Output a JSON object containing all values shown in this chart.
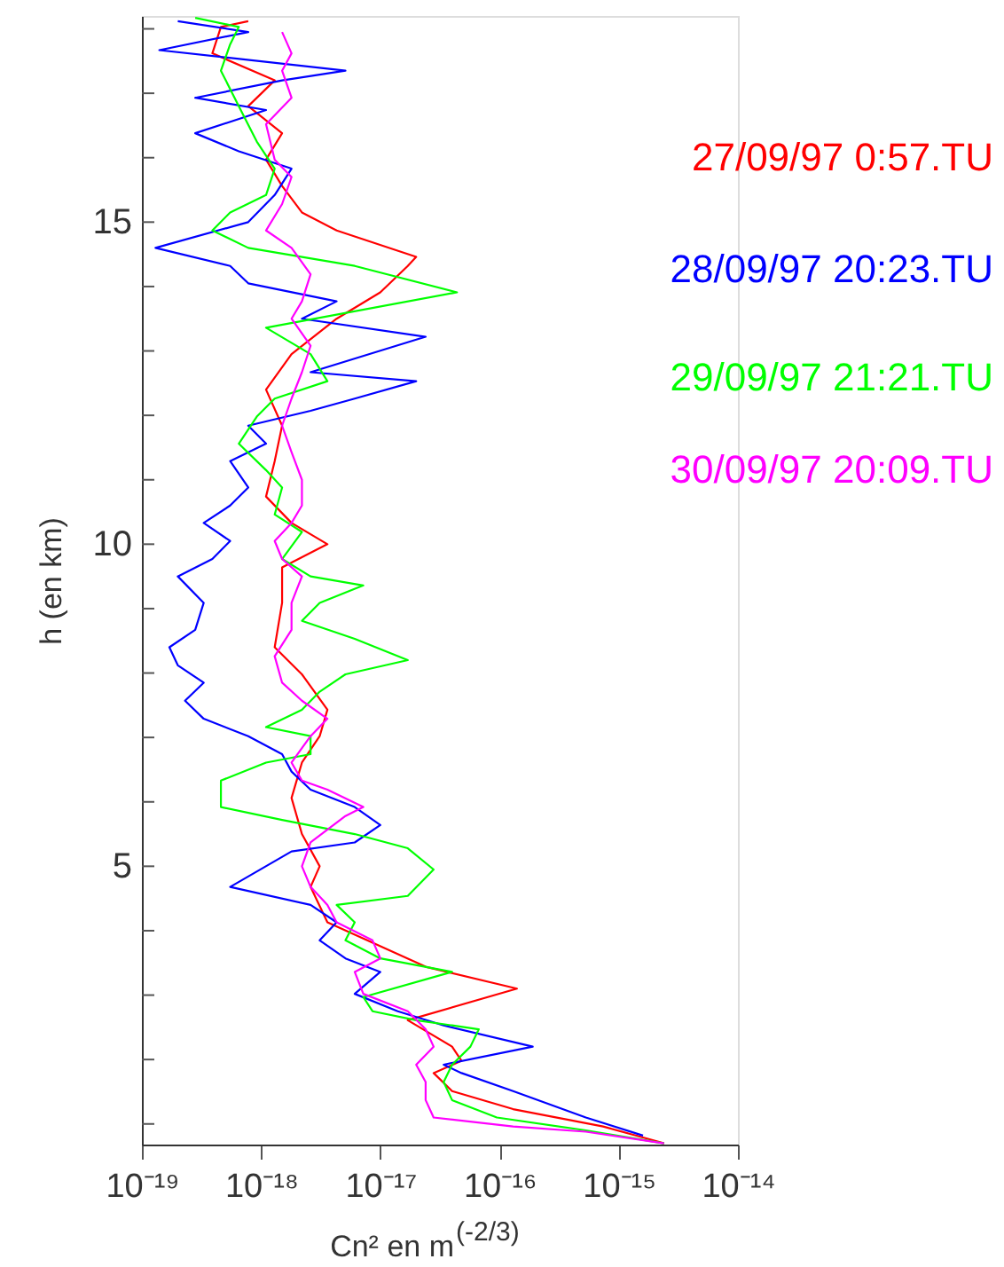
{
  "chart_data": {
    "type": "line",
    "xlabel": "Cn² en m$^{(-2/3)}$",
    "ylabel": "h (en km)",
    "log": "x",
    "xlim": [
      1e-19,
      1e-14
    ],
    "ylim": [
      0.68,
      18.2
    ],
    "xticks": [
      {
        "value": 1e-19,
        "label": "10⁻¹⁹"
      },
      {
        "value": 1e-18,
        "label": "10⁻¹⁸"
      },
      {
        "value": 1e-17,
        "label": "10⁻¹⁷"
      },
      {
        "value": 1e-16,
        "label": "10⁻¹⁶"
      },
      {
        "value": 1e-15,
        "label": "10⁻¹⁵"
      },
      {
        "value": 1e-14,
        "label": "10⁻¹⁴"
      }
    ],
    "yticks": [
      {
        "value": 1,
        "label": null
      },
      {
        "value": 2,
        "label": null
      },
      {
        "value": 3,
        "label": null
      },
      {
        "value": 4,
        "label": null
      },
      5,
      {
        "value": 6,
        "label": null
      },
      {
        "value": 7,
        "label": null
      },
      {
        "value": 8,
        "label": null
      },
      {
        "value": 9,
        "label": null
      },
      10,
      {
        "value": 11,
        "label": null
      },
      {
        "value": 12,
        "label": null
      },
      {
        "value": 13,
        "label": null
      },
      {
        "value": 14,
        "label": null
      },
      15,
      {
        "value": 16,
        "label": null
      },
      {
        "value": 17,
        "label": null
      },
      {
        "value": 18,
        "label": null
      }
    ],
    "grid": false,
    "legend": "top right",
    "series": [
      {
        "name": "27/09/97 0:57.TU",
        "color": "#ff0000",
        "x": [
          2.4e-15,
          7.4e-16,
          1.3e-16,
          4e-17,
          2.8e-17,
          4.8e-17,
          4e-17,
          1.7e-17,
          1.4e-16,
          2.4e-17,
          3.6e-18,
          2.6e-18,
          3.1e-18,
          2.2e-18,
          1.8e-18,
          2.2e-18,
          3.1e-18,
          3.6e-18,
          2.2e-18,
          1.3e-18,
          1.5e-18,
          1.5e-18,
          3.6e-18,
          1.8e-18,
          1.1e-18,
          1.3e-18,
          1.5e-18,
          1.1e-18,
          1.8e-18,
          4.3e-18,
          1e-17,
          1.7e-17,
          2e-17,
          4.3e-18,
          2.2e-18,
          1.5e-18,
          1.1e-18,
          1.5e-18,
          7.8e-19,
          1.3e-18,
          3.9e-19,
          4.6e-19,
          7.8e-19
        ],
        "values": [
          0.7,
          0.96,
          1.23,
          1.51,
          1.79,
          1.98,
          2.2,
          2.61,
          3.1,
          3.44,
          4.13,
          4.68,
          5.0,
          5.5,
          6.06,
          6.61,
          7.02,
          7.43,
          7.98,
          8.4,
          9.09,
          9.64,
          10.0,
          10.33,
          10.74,
          11.29,
          11.84,
          12.4,
          12.95,
          13.5,
          13.91,
          14.32,
          14.46,
          14.87,
          15.15,
          15.56,
          15.97,
          16.38,
          16.8,
          17.2,
          17.62,
          18.03,
          18.12
        ]
      },
      {
        "name": "28/09/97 20:23.TU",
        "color": "#0000ff",
        "x": [
          1.6e-15,
          5.3e-16,
          1.3e-16,
          4.8e-17,
          3.4e-17,
          1.9e-16,
          3.4e-17,
          1.4e-17,
          6.1e-18,
          1e-17,
          5.1e-18,
          3.1e-18,
          4.3e-18,
          2.6e-18,
          5.5e-19,
          1.8e-18,
          6.1e-18,
          1e-17,
          6.1e-18,
          2.6e-18,
          1.8e-18,
          1.5e-18,
          7.8e-19,
          3.3e-19,
          2.3e-19,
          3.3e-19,
          2e-19,
          1.7e-19,
          2.8e-19,
          3.3e-19,
          2e-19,
          3.9e-19,
          5.5e-19,
          3.3e-19,
          5.5e-19,
          7.8e-19,
          5.5e-19,
          1.1e-18,
          7.8e-19,
          2.6e-18,
          6.1e-18,
          2e-17,
          2.6e-18,
          2.4e-17,
          2.2e-18,
          4.3e-18,
          7.8e-19,
          5.5e-19,
          1.3e-19,
          7.8e-19,
          1.3e-18,
          1.8e-18,
          6.5e-19,
          2.8e-19,
          1.1e-18,
          2.8e-19,
          1.5e-18,
          5.1e-18,
          1.4e-19,
          7.8e-19,
          2e-19
        ],
        "values": [
          0.82,
          1.1,
          1.51,
          1.79,
          1.92,
          2.2,
          2.53,
          2.75,
          3.02,
          3.36,
          3.57,
          3.85,
          4.13,
          4.4,
          4.68,
          5.23,
          5.37,
          5.64,
          5.92,
          6.19,
          6.47,
          6.74,
          7.02,
          7.29,
          7.57,
          7.85,
          8.12,
          8.4,
          8.67,
          9.09,
          9.5,
          9.77,
          10.05,
          10.33,
          10.6,
          10.88,
          11.29,
          11.56,
          11.84,
          12.07,
          12.26,
          12.53,
          12.67,
          13.22,
          13.5,
          13.77,
          14.05,
          14.32,
          14.6,
          15.0,
          15.42,
          15.83,
          16.1,
          16.38,
          16.74,
          16.93,
          17.2,
          17.35,
          17.67,
          17.95,
          18.12
        ]
      },
      {
        "name": "29/09/97 21:21.TU",
        "color": "#00ff00",
        "x": [
          2.4e-15,
          5.3e-16,
          9.5e-17,
          4e-17,
          3.4e-17,
          4e-17,
          5.7e-17,
          6.7e-17,
          2e-17,
          8.6e-18,
          7.2e-18,
          4e-17,
          1e-17,
          5.1e-18,
          6.1e-18,
          4.3e-18,
          1.7e-17,
          2.8e-17,
          1.7e-17,
          6.1e-18,
          1.5e-18,
          4.6e-19,
          4.6e-19,
          1.1e-18,
          2.6e-18,
          2.6e-18,
          1.1e-18,
          2.2e-18,
          3.1e-18,
          5.1e-18,
          1.7e-17,
          6.1e-18,
          2.2e-18,
          3.1e-18,
          7.2e-18,
          2.6e-18,
          1.5e-18,
          2.2e-18,
          1.3e-18,
          1.5e-18,
          1.1e-18,
          6.5e-19,
          9.2e-19,
          1.3e-18,
          3.6e-18,
          2.6e-18,
          1.1e-18,
          4.4e-17,
          6.1e-18,
          7.8e-19,
          3.9e-19,
          5.5e-19,
          1.1e-18,
          1.3e-18,
          9.2e-19,
          6.5e-19,
          4.6e-19,
          5.5e-19,
          6.5e-19,
          2.8e-19
        ],
        "values": [
          0.7,
          0.9,
          1.1,
          1.37,
          1.65,
          1.92,
          2.2,
          2.47,
          2.61,
          2.75,
          2.97,
          3.36,
          3.57,
          3.85,
          4.13,
          4.4,
          4.54,
          4.95,
          5.28,
          5.5,
          5.72,
          5.92,
          6.33,
          6.61,
          6.74,
          7.02,
          7.16,
          7.43,
          7.71,
          7.98,
          8.2,
          8.53,
          8.81,
          9.09,
          9.36,
          9.5,
          9.77,
          10.19,
          10.46,
          10.88,
          11.15,
          11.56,
          11.98,
          12.26,
          12.53,
          12.95,
          13.36,
          13.91,
          14.32,
          14.6,
          14.87,
          15.15,
          15.42,
          15.83,
          16.25,
          16.8,
          17.35,
          17.76,
          18.03,
          18.17
        ]
      },
      {
        "name": "30/09/97 20:09.TU",
        "color": "#ff00ff",
        "x": [
          2.4e-15,
          5.3e-16,
          1.3e-16,
          2.8e-17,
          2.4e-17,
          2.4e-17,
          2e-17,
          2.8e-17,
          2.4e-17,
          1.7e-17,
          7.2e-18,
          6.1e-18,
          1e-17,
          8.6e-18,
          4.3e-18,
          3.6e-18,
          2.6e-18,
          2.2e-18,
          2.6e-18,
          5.1e-18,
          7.2e-18,
          3.6e-18,
          2.2e-18,
          1.8e-18,
          2.6e-18,
          3.6e-18,
          2.2e-18,
          1.5e-18,
          1.3e-18,
          1.8e-18,
          1.8e-18,
          2.2e-18,
          1.5e-18,
          1.3e-18,
          1.8e-18,
          2.2e-18,
          2.2e-18,
          1.8e-18,
          1.5e-18,
          1.8e-18,
          2.2e-18,
          2.6e-18,
          1.8e-18,
          2.2e-18,
          2.6e-18,
          1.8e-18,
          1.1e-18,
          1.5e-18,
          1.8e-18,
          1.3e-18,
          1.1e-18,
          1.8e-18,
          1.5e-18,
          1.8e-18,
          1.5e-18
        ],
        "values": [
          0.7,
          0.88,
          0.96,
          1.1,
          1.37,
          1.65,
          1.92,
          2.2,
          2.47,
          2.75,
          3.02,
          3.36,
          3.57,
          3.85,
          4.13,
          4.4,
          4.68,
          5.0,
          5.37,
          5.78,
          5.92,
          6.19,
          6.33,
          6.61,
          7.02,
          7.29,
          7.57,
          7.85,
          8.26,
          8.67,
          9.09,
          9.5,
          9.77,
          10.05,
          10.33,
          10.6,
          11.0,
          11.43,
          11.84,
          12.26,
          12.67,
          13.08,
          13.5,
          13.77,
          14.19,
          14.6,
          14.87,
          15.28,
          15.7,
          15.97,
          16.52,
          16.93,
          17.35,
          17.62,
          17.95
        ]
      }
    ]
  }
}
